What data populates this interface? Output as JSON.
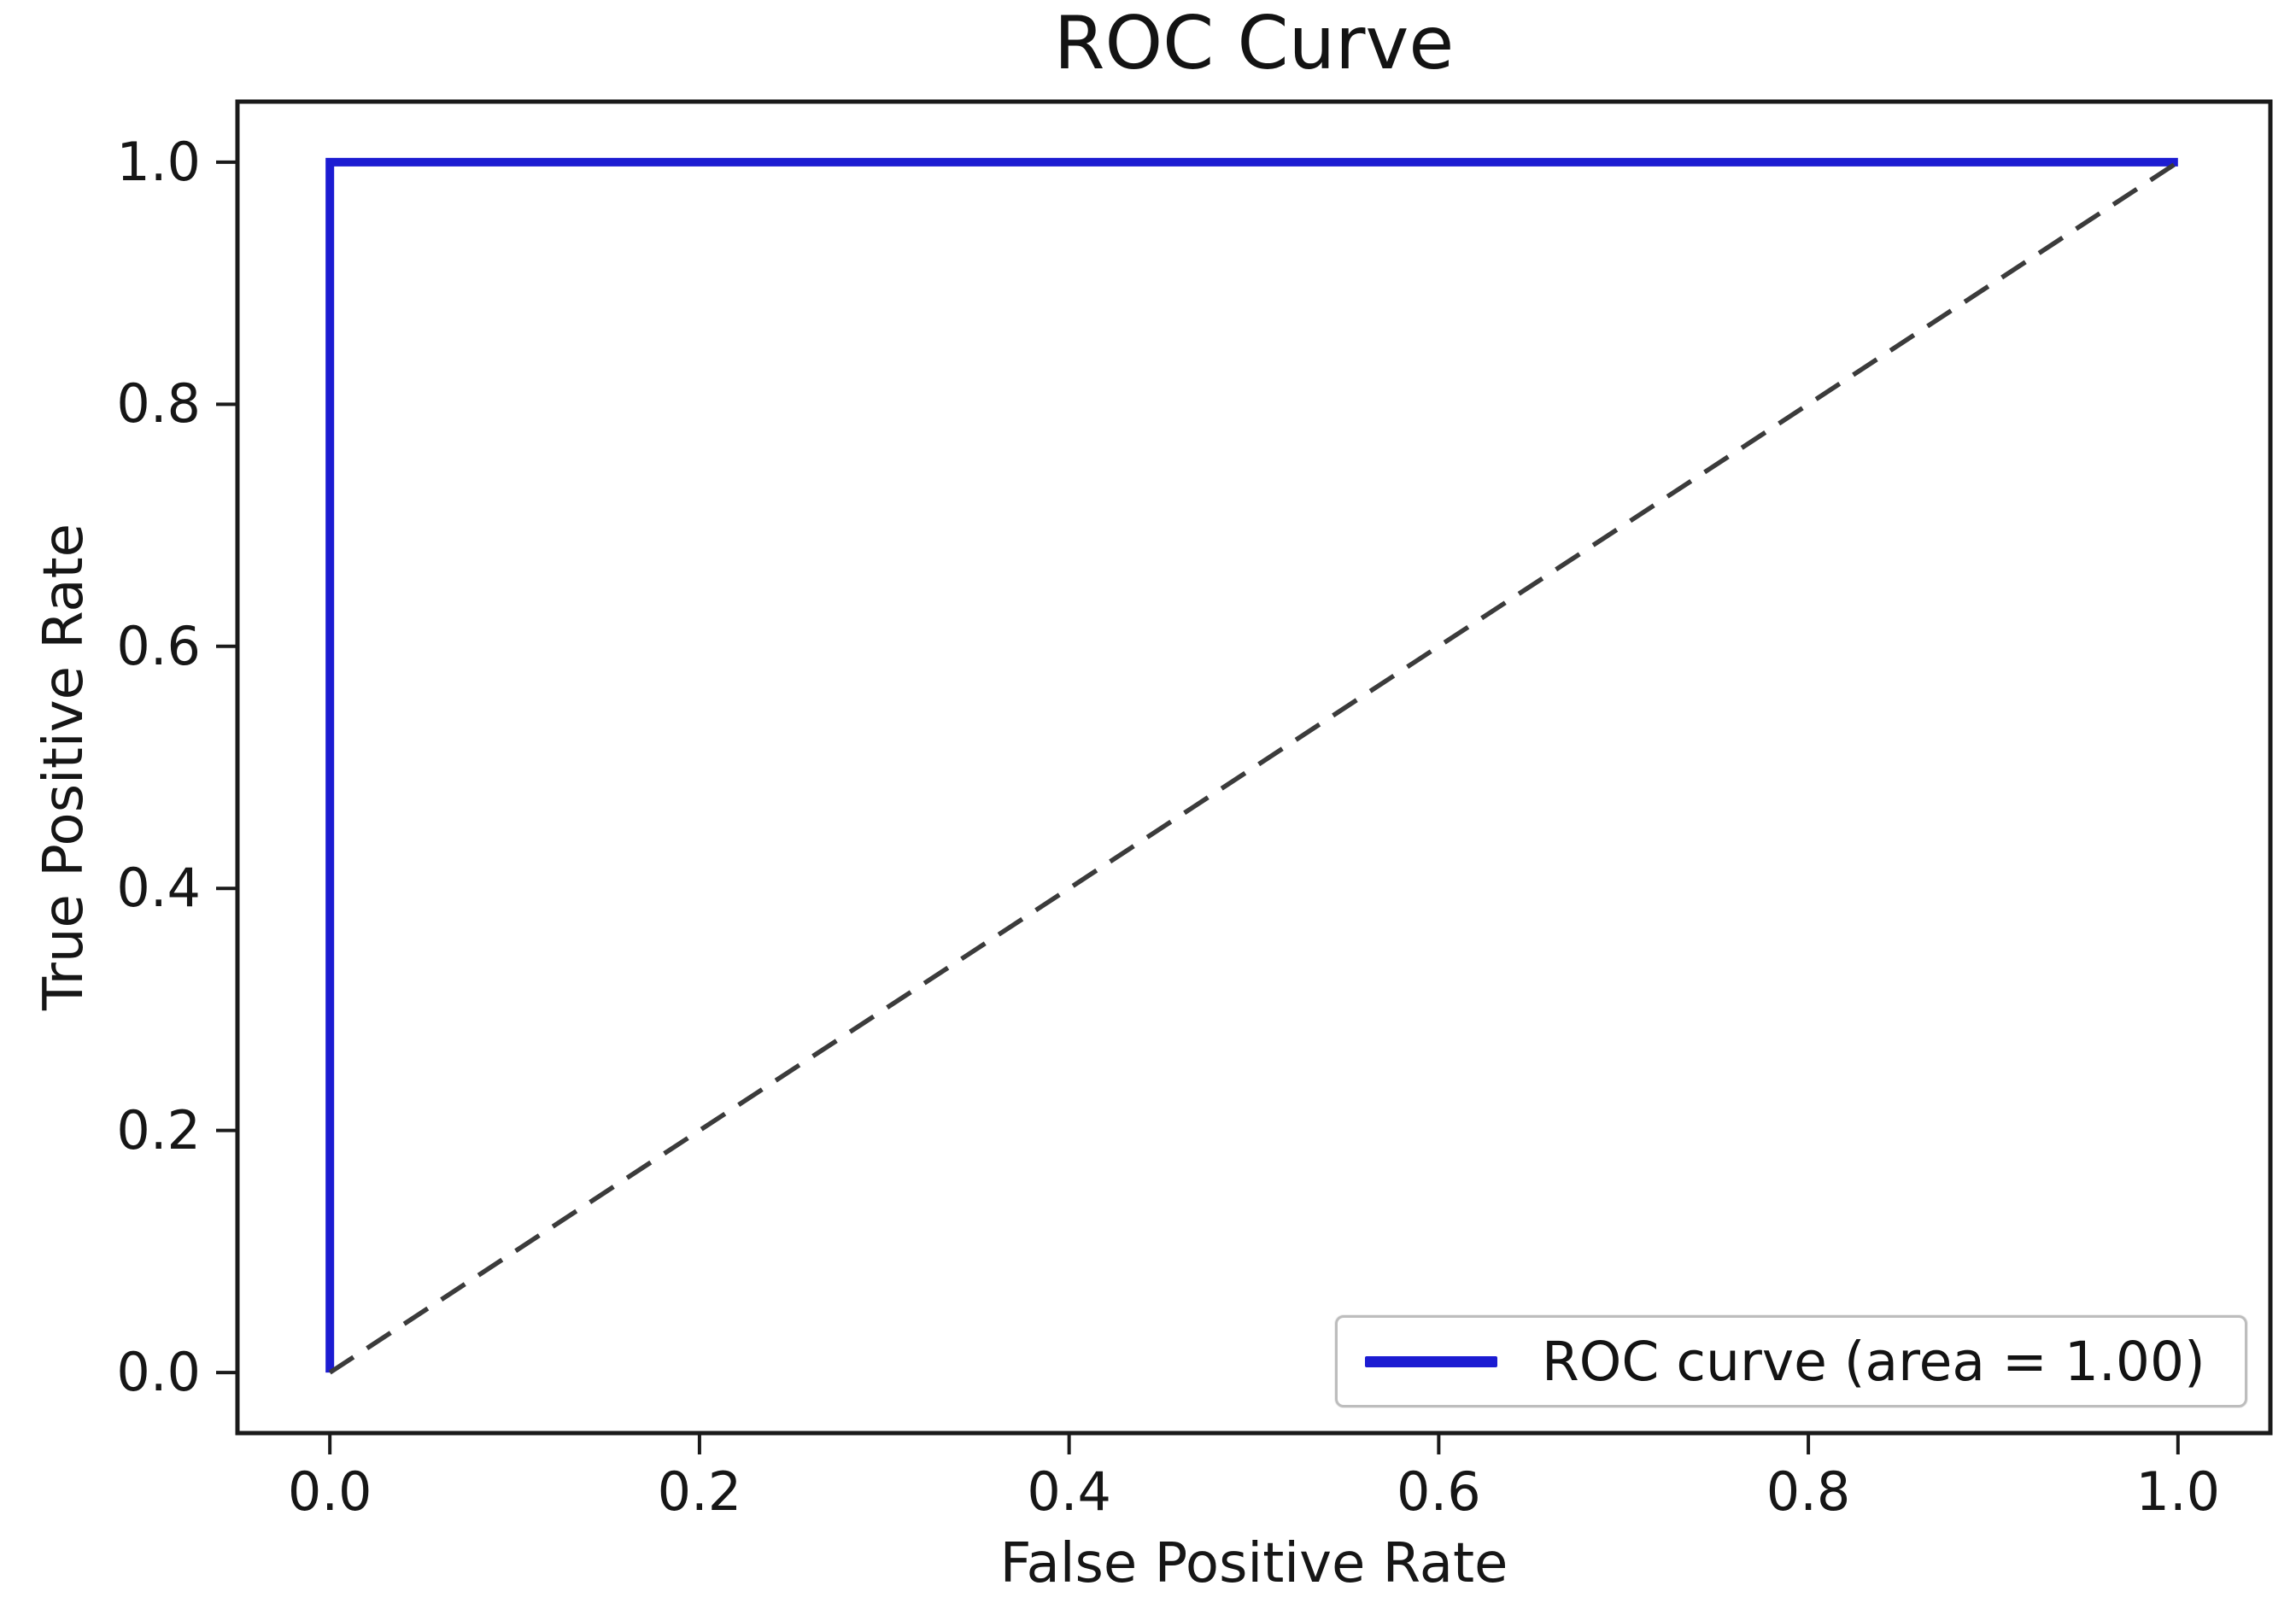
{
  "figure": {
    "background": "#ffffff"
  },
  "chart_data": {
    "type": "line",
    "title": "ROC Curve",
    "xlabel": "False Positive Rate",
    "ylabel": "True Positive Rate",
    "xlim": [
      -0.05,
      1.05
    ],
    "ylim": [
      -0.05,
      1.05
    ],
    "xticks": [
      0.0,
      0.2,
      0.4,
      0.6,
      0.8,
      1.0
    ],
    "yticks": [
      0.0,
      0.2,
      0.4,
      0.6,
      0.8,
      1.0
    ],
    "xtick_labels": [
      "0.0",
      "0.2",
      "0.4",
      "0.6",
      "0.8",
      "1.0"
    ],
    "ytick_labels": [
      "0.0",
      "0.2",
      "0.4",
      "0.6",
      "0.8",
      "1.0"
    ],
    "grid": false,
    "auc": "1.00",
    "legend": {
      "position": "lower right",
      "entries": [
        {
          "label": "ROC curve (area = 1.00)",
          "color": "#1c1cd2",
          "style": "solid"
        }
      ]
    },
    "series": [
      {
        "name": "roc-curve",
        "label": "ROC curve (area = 1.00)",
        "color": "#1c1cd2",
        "linewidth": 10,
        "dash": null,
        "points": [
          [
            0,
            0
          ],
          [
            0,
            1
          ],
          [
            1,
            1
          ]
        ]
      },
      {
        "name": "chance-diagonal",
        "label": null,
        "color": "#3b3b3b",
        "linewidth": 5.5,
        "dash": [
          33,
          19
        ],
        "points": [
          [
            0,
            0
          ],
          [
            1,
            1
          ]
        ]
      }
    ]
  },
  "colors": {
    "spine": "#1a1a1a",
    "tick": "#1a1a1a",
    "text": "#161616",
    "legend_border": "#bdbdbd"
  }
}
